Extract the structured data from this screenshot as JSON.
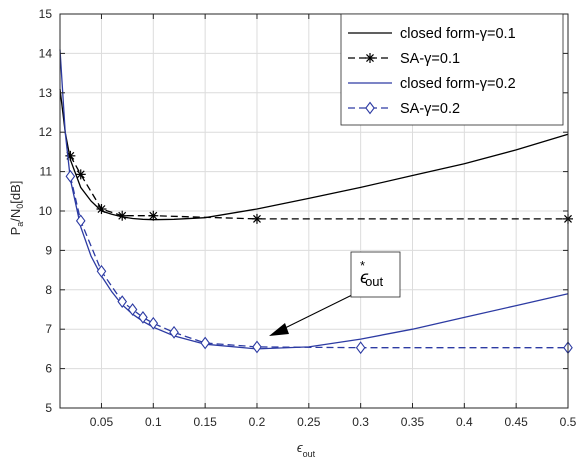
{
  "chart_data": {
    "type": "line",
    "title": "",
    "xlabel": "ϵ_out",
    "ylabel": "P_a/N_0[dB]",
    "xlim": [
      0.01,
      0.5
    ],
    "ylim": [
      5,
      15
    ],
    "xticks": [
      "0.05",
      "0.1",
      "0.15",
      "0.2",
      "0.25",
      "0.3",
      "0.35",
      "0.4",
      "0.45",
      "0.5"
    ],
    "yticks": [
      "5",
      "6",
      "7",
      "8",
      "9",
      "10",
      "11",
      "12",
      "13",
      "14",
      "15"
    ],
    "grid": true,
    "legend_position": "top-right",
    "series": [
      {
        "name": "closed form-γ=0.1",
        "color": "#000000",
        "dash": "solid",
        "marker": "none",
        "x": [
          0.01,
          0.015,
          0.02,
          0.03,
          0.04,
          0.05,
          0.06,
          0.07,
          0.08,
          0.09,
          0.1,
          0.12,
          0.15,
          0.2,
          0.25,
          0.3,
          0.35,
          0.4,
          0.45,
          0.5
        ],
        "y": [
          13.1,
          12.0,
          11.3,
          10.6,
          10.25,
          10.0,
          9.92,
          9.85,
          9.81,
          9.79,
          9.78,
          9.79,
          9.83,
          10.05,
          10.32,
          10.6,
          10.9,
          11.2,
          11.55,
          11.95
        ]
      },
      {
        "name": "SA-γ=0.1",
        "color": "#000000",
        "dash": "dashed",
        "marker": "asterisk",
        "x": [
          0.02,
          0.03,
          0.05,
          0.07,
          0.1,
          0.2,
          0.5
        ],
        "y": [
          11.4,
          10.93,
          10.05,
          9.88,
          9.88,
          9.8,
          9.8
        ]
      },
      {
        "name": "closed form-γ=0.2",
        "color": "#2d3ba3",
        "dash": "solid",
        "marker": "none",
        "x": [
          0.01,
          0.015,
          0.02,
          0.03,
          0.04,
          0.05,
          0.06,
          0.07,
          0.08,
          0.09,
          0.1,
          0.12,
          0.15,
          0.2,
          0.25,
          0.3,
          0.35,
          0.4,
          0.45,
          0.5
        ],
        "y": [
          14.1,
          12.0,
          10.8,
          9.6,
          8.85,
          8.35,
          7.95,
          7.62,
          7.38,
          7.2,
          7.05,
          6.83,
          6.62,
          6.5,
          6.55,
          6.75,
          7.0,
          7.3,
          7.6,
          7.9
        ]
      },
      {
        "name": "SA-γ=0.2",
        "color": "#2d3ba3",
        "dash": "dashed",
        "marker": "diamond",
        "x": [
          0.02,
          0.03,
          0.05,
          0.07,
          0.08,
          0.09,
          0.1,
          0.12,
          0.15,
          0.2,
          0.3,
          0.5
        ],
        "y": [
          10.88,
          9.75,
          8.47,
          7.7,
          7.5,
          7.3,
          7.15,
          6.92,
          6.65,
          6.55,
          6.53,
          6.53
        ]
      }
    ],
    "annotation": {
      "text": "ϵ*out",
      "arrow_target": [
        0.2,
        6.55
      ]
    }
  }
}
